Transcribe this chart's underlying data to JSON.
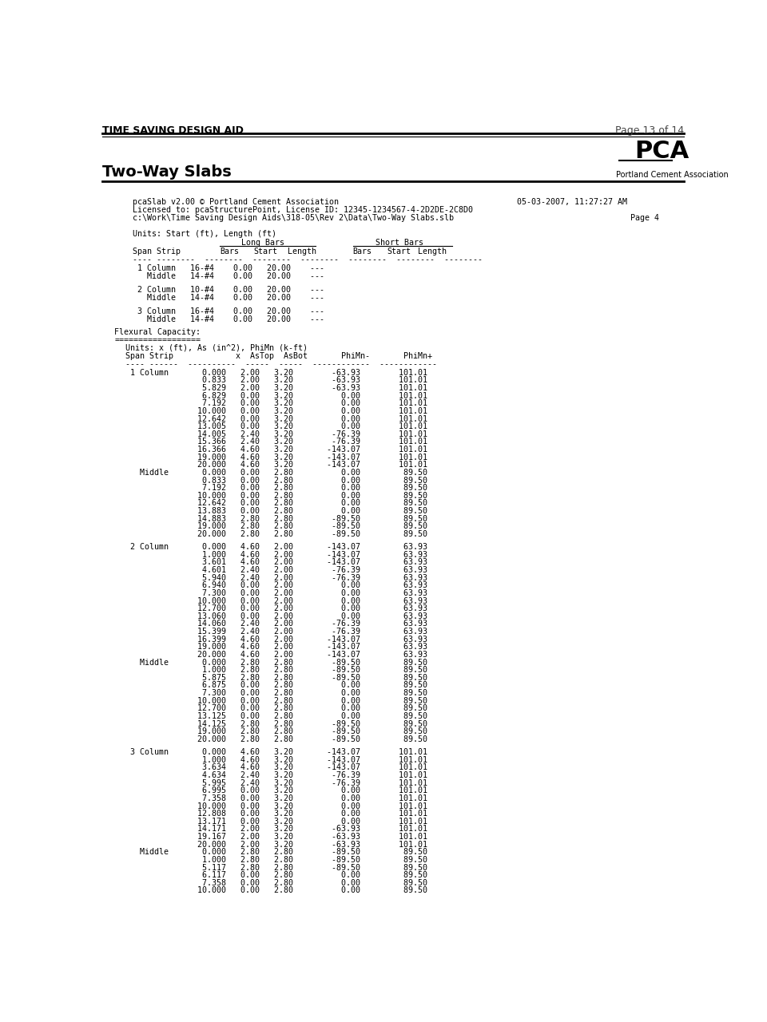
{
  "header_left": "TIME SAVING DESIGN AID",
  "header_right": "Page 13 of 14",
  "title_left": "Two-Way Slabs",
  "title_right": "Portland Cement Association",
  "info_line1": "pcaSlab v2.00 © Portland Cement Association",
  "info_line2": "Licensed to: pcaStructurePoint, License ID: 12345-1234567-4-2D2DE-2C8D0",
  "info_line3": "c:\\Work\\Time Saving Design Aids\\318-05\\Rev 2\\Data\\Two-Way Slabs.slb",
  "info_date": "05-03-2007, 11:27:27 AM",
  "info_page": "Page 4",
  "s1_title": "Units: Start (ft), Length (ft)",
  "s1_longbars": "Long Bars",
  "s1_shortbars": "Short Bars",
  "s1_col_header": "Span Strip      Bars    Start   Length    Bars    Start   Length",
  "s1_sep": "---- --------  --------  -------  -------  --------  -------  -------",
  "s1_rows": [
    " 1 Column   16-#4    0.00   20.00    ---",
    "   Middle   14-#4    0.00   20.00    ---",
    "",
    " 2 Column   10-#4    0.00   20.00    ---",
    "   Middle   14-#4    0.00   20.00    ---",
    "",
    " 3 Column   16-#4    0.00   20.00    ---",
    "   Middle   14-#4    0.00   20.00    ---"
  ],
  "s2_title": "Flexural Capacity:",
  "s2_sep1": "==================",
  "s2_units": "Units: x (ft), As (in^2), PhiMn (k-ft)",
  "s2_header": "Span Strip             x  AsTop  AsBot       PhiMn-       PhiMn+",
  "s2_sep2": "---- ------  ----------  -----  -----  ------------  ------------",
  "s2_rows": [
    " 1 Column       0.000   2.00   3.20        -63.93        101.01",
    "                0.833   2.00   3.20        -63.93        101.01",
    "                5.829   2.00   3.20        -63.93        101.01",
    "                6.829   0.00   3.20          0.00        101.01",
    "                7.192   0.00   3.20          0.00        101.01",
    "               10.000   0.00   3.20          0.00        101.01",
    "               12.642   0.00   3.20          0.00        101.01",
    "               13.005   0.00   3.20          0.00        101.01",
    "               14.005   2.40   3.20        -76.39        101.01",
    "               15.366   2.40   3.20        -76.39        101.01",
    "               16.366   4.60   3.20       -143.07        101.01",
    "               19.000   4.60   3.20       -143.07        101.01",
    "               20.000   4.60   3.20       -143.07        101.01",
    "   Middle       0.000   0.00   2.80          0.00         89.50",
    "                0.833   0.00   2.80          0.00         89.50",
    "                7.192   0.00   2.80          0.00         89.50",
    "               10.000   0.00   2.80          0.00         89.50",
    "               12.642   0.00   2.80          0.00         89.50",
    "               13.883   0.00   2.80          0.00         89.50",
    "               14.883   2.80   2.80        -89.50         89.50",
    "               19.000   2.80   2.80        -89.50         89.50",
    "               20.000   2.80   2.80        -89.50         89.50",
    "",
    " 2 Column       0.000   4.60   2.00       -143.07         63.93",
    "                1.000   4.60   2.00       -143.07         63.93",
    "                3.601   4.60   2.00       -143.07         63.93",
    "                4.601   2.40   2.00        -76.39         63.93",
    "                5.940   2.40   2.00        -76.39         63.93",
    "                6.940   0.00   2.00          0.00         63.93",
    "                7.300   0.00   2.00          0.00         63.93",
    "               10.000   0.00   2.00          0.00         63.93",
    "               12.700   0.00   2.00          0.00         63.93",
    "               13.060   0.00   2.00          0.00         63.93",
    "               14.060   2.40   2.00        -76.39         63.93",
    "               15.399   2.40   2.00        -76.39         63.93",
    "               16.399   4.60   2.00       -143.07         63.93",
    "               19.000   4.60   2.00       -143.07         63.93",
    "               20.000   4.60   2.00       -143.07         63.93",
    "   Middle       0.000   2.80   2.80        -89.50         89.50",
    "                1.000   2.80   2.80        -89.50         89.50",
    "                5.875   2.80   2.80        -89.50         89.50",
    "                6.875   0.00   2.80          0.00         89.50",
    "                7.300   0.00   2.80          0.00         89.50",
    "               10.000   0.00   2.80          0.00         89.50",
    "               12.700   0.00   2.80          0.00         89.50",
    "               13.125   0.00   2.80          0.00         89.50",
    "               14.125   2.80   2.80        -89.50         89.50",
    "               19.000   2.80   2.80        -89.50         89.50",
    "               20.000   2.80   2.80        -89.50         89.50",
    "",
    " 3 Column       0.000   4.60   3.20       -143.07        101.01",
    "                1.000   4.60   3.20       -143.07        101.01",
    "                3.634   4.60   3.20       -143.07        101.01",
    "                4.634   2.40   3.20        -76.39        101.01",
    "                5.995   2.40   3.20        -76.39        101.01",
    "                6.995   0.00   3.20          0.00        101.01",
    "                7.358   0.00   3.20          0.00        101.01",
    "               10.000   0.00   3.20          0.00        101.01",
    "               12.808   0.00   3.20          0.00        101.01",
    "               13.171   0.00   3.20          0.00        101.01",
    "               14.171   2.00   3.20        -63.93        101.01",
    "               19.167   2.00   3.20        -63.93        101.01",
    "               20.000   2.00   3.20        -63.93        101.01",
    "   Middle       0.000   2.80   2.80        -89.50         89.50",
    "                1.000   2.80   2.80        -89.50         89.50",
    "                5.117   2.80   2.80        -89.50         89.50",
    "                6.117   0.00   2.80          0.00         89.50",
    "                7.358   0.00   2.80          0.00         89.50",
    "               10.000   0.00   2.80          0.00         89.50"
  ],
  "bg_color": "#ffffff",
  "text_color": "#000000"
}
